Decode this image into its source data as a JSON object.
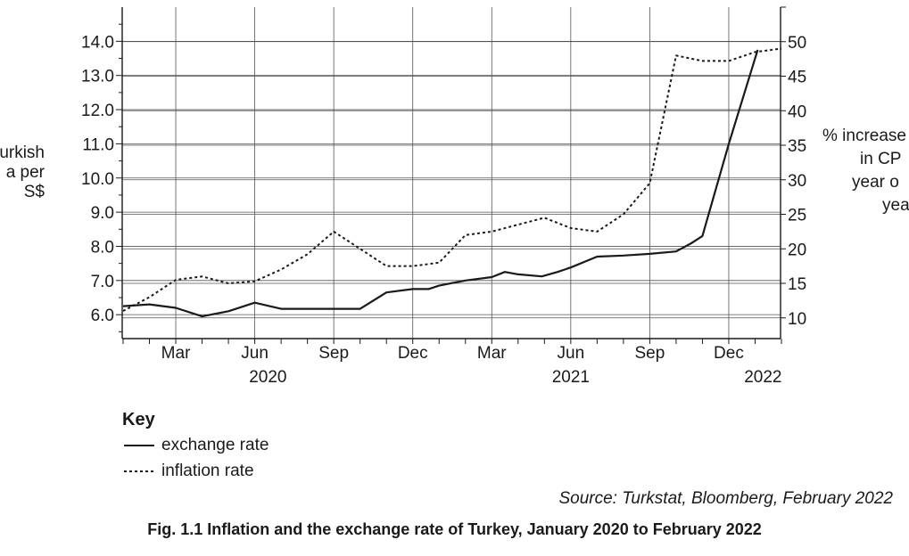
{
  "chart_data": {
    "type": "line",
    "title": "Fig. 1.1 Inflation and the exchange rate of Turkey, January 2020 to February 2022",
    "y_left_label_lines": [
      "urkish",
      "a per",
      "S$"
    ],
    "y_right_label_lines": [
      "% increase",
      "in CP",
      "year o",
      "yea"
    ],
    "y_left_ticks": [
      "6.0",
      "7.0",
      "8.0",
      "9.0",
      "10.0",
      "11.0",
      "12.0",
      "13.0",
      "14.0"
    ],
    "y_right_ticks": [
      "10",
      "15",
      "20",
      "25",
      "30",
      "35",
      "40",
      "45",
      "50"
    ],
    "y_left_range": [
      5.3,
      15.0
    ],
    "y_right_range": [
      7,
      55
    ],
    "x_range": [
      0,
      25
    ],
    "month_labels": [
      {
        "x": 2,
        "label": "Mar"
      },
      {
        "x": 5,
        "label": "Jun"
      },
      {
        "x": 8,
        "label": "Sep"
      },
      {
        "x": 11,
        "label": "Dec"
      },
      {
        "x": 14,
        "label": "Mar"
      },
      {
        "x": 17,
        "label": "Jun"
      },
      {
        "x": 20,
        "label": "Sep"
      },
      {
        "x": 23,
        "label": "Dec"
      }
    ],
    "year_labels": [
      {
        "x": 5.5,
        "label": "2020"
      },
      {
        "x": 17,
        "label": "2021"
      },
      {
        "x": 24.3,
        "label": "2022"
      }
    ],
    "series": [
      {
        "name": "exchange rate",
        "axis": "left",
        "style": "solid",
        "x": [
          0,
          1,
          2,
          3,
          4,
          5,
          6,
          7,
          8,
          9,
          10,
          11,
          11.6,
          12,
          13,
          14,
          14.5,
          15,
          15.9,
          16.5,
          17,
          18,
          19,
          20,
          21,
          21.6,
          22,
          23,
          24.1
        ],
        "values": [
          6.25,
          6.3,
          6.2,
          5.95,
          6.1,
          6.35,
          6.17,
          6.17,
          6.17,
          6.17,
          6.65,
          6.75,
          6.75,
          6.85,
          7.0,
          7.1,
          7.25,
          7.18,
          7.12,
          7.25,
          7.38,
          7.7,
          7.73,
          7.78,
          7.85,
          8.1,
          8.3,
          11.0,
          13.75
        ]
      },
      {
        "name": "inflation rate",
        "axis": "right",
        "style": "dotted",
        "x": [
          0,
          1,
          2,
          3,
          4,
          5,
          6,
          7,
          8,
          9,
          10,
          11,
          12,
          13,
          14,
          15,
          16,
          17,
          18,
          19,
          20,
          21,
          22,
          23,
          24,
          25
        ],
        "values": [
          11.0,
          13.0,
          15.5,
          16.0,
          15.0,
          15.3,
          17.0,
          19.2,
          22.5,
          20.0,
          17.5,
          17.5,
          18.0,
          22.0,
          22.5,
          23.5,
          24.5,
          23.0,
          22.5,
          25.0,
          29.5,
          48.0,
          47.2,
          47.2,
          48.5,
          49.0
        ]
      }
    ],
    "grid": true,
    "legend_position": "bottom-left"
  },
  "key": {
    "title": "Key",
    "items": [
      {
        "label": "exchange rate"
      },
      {
        "label": "inflation rate"
      }
    ]
  },
  "source": "Source: Turkstat, Bloomberg, February 2022"
}
